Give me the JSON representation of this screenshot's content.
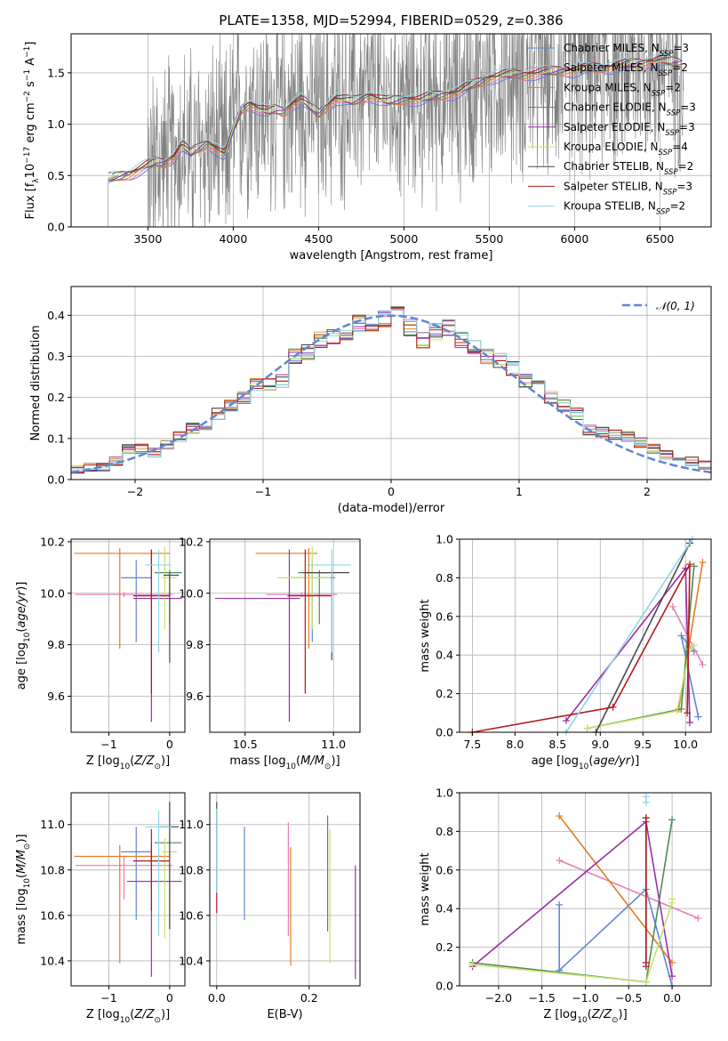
{
  "figure": {
    "title": "PLATE=1358, MJD=52994, FIBERID=0529, z=0.386"
  },
  "models": [
    {
      "name": "Chabrier MILES, N$_{SSP}$=3",
      "base": "Chabrier MILES, N",
      "sub": "SSP",
      "tail": "=3",
      "color": "#5f86d6"
    },
    {
      "name": "Salpeter MILES, N$_{SSP}$=2",
      "base": "Salpeter MILES, N",
      "sub": "SSP",
      "tail": "=2",
      "color": "#e67fb5"
    },
    {
      "name": "Kroupa MILES, N$_{SSP}$=2",
      "base": "Kroupa MILES, N",
      "sub": "SSP",
      "tail": "=2",
      "color": "#e57b22"
    },
    {
      "name": "Chabrier ELODIE, N$_{SSP}$=3",
      "base": "Chabrier ELODIE, N",
      "sub": "SSP",
      "tail": "=3",
      "color": "#4f8a57"
    },
    {
      "name": "Salpeter ELODIE, N$_{SSP}$=3",
      "base": "Salpeter ELODIE, N",
      "sub": "SSP",
      "tail": "=3",
      "color": "#9b2ea6"
    },
    {
      "name": "Kroupa ELODIE, N$_{SSP}$=4",
      "base": "Kroupa ELODIE, N",
      "sub": "SSP",
      "tail": "=4",
      "color": "#c6e26a"
    },
    {
      "name": "Chabrier STELIB, N$_{SSP}$=2",
      "base": "Chabrier STELIB, N",
      "sub": "SSP",
      "tail": "=2",
      "color": "#4a4a4a"
    },
    {
      "name": "Salpeter STELIB, N$_{SSP}$=3",
      "base": "Salpeter STELIB, N",
      "sub": "SSP",
      "tail": "=3",
      "color": "#b21a1a"
    },
    {
      "name": "Kroupa STELIB, N$_{SSP}$=2",
      "base": "Kroupa STELIB, N",
      "sub": "SSP",
      "tail": "=2",
      "color": "#8fd6e8"
    }
  ],
  "chart_data": [
    {
      "id": "spectrum",
      "type": "line",
      "xlabel": "wavelength [Angstrom, rest frame]",
      "ylabel": "Flux [f$_\\lambda$10$^{-17}$ erg cm$^{-2}$ s$^{-1}$ A$^{-1}$]",
      "xlim": [
        3050,
        6800
      ],
      "ylim": [
        0,
        1.88
      ],
      "xticks": [
        3500,
        4000,
        4500,
        5000,
        5500,
        6000,
        6500
      ],
      "yticks": [
        0.0,
        0.5,
        1.0,
        1.5
      ],
      "data_color": "#808080",
      "model_continuum": {
        "x": [
          3270,
          3300,
          3400,
          3450,
          3500,
          3550,
          3600,
          3650,
          3700,
          3750,
          3800,
          3850,
          3900,
          3950,
          4000,
          4050,
          4100,
          4150,
          4200,
          4250,
          4300,
          4350,
          4400,
          4500,
          4600,
          4700,
          4800,
          4900,
          5000,
          5100,
          5200,
          5300,
          5400,
          5500,
          5600,
          5700,
          5800,
          5900,
          6000,
          6100,
          6200,
          6300,
          6400,
          6500,
          6600
        ],
        "y": [
          0.47,
          0.48,
          0.52,
          0.56,
          0.6,
          0.63,
          0.62,
          0.68,
          0.8,
          0.72,
          0.77,
          0.82,
          0.76,
          0.7,
          0.95,
          1.15,
          1.2,
          1.15,
          1.12,
          1.14,
          1.12,
          1.2,
          1.24,
          1.1,
          1.25,
          1.22,
          1.28,
          1.22,
          1.24,
          1.24,
          1.28,
          1.3,
          1.38,
          1.45,
          1.48,
          1.48,
          1.5,
          1.52,
          1.52,
          1.55,
          1.55,
          1.58,
          1.6,
          1.62,
          1.6
        ]
      }
    },
    {
      "id": "residuals",
      "type": "bar",
      "xlabel": "(data-model)/error",
      "ylabel": "Normed distribution",
      "xlim": [
        -2.5,
        2.5
      ],
      "ylim": [
        0,
        0.47
      ],
      "xticks": [
        -2,
        -1,
        0,
        1,
        2
      ],
      "yticks": [
        0.0,
        0.1,
        0.2,
        0.3,
        0.4
      ],
      "legend": "$\\mathcal{N}(0,1)$",
      "legend_text": "𝒩(0, 1)",
      "legend_color": "#5f86d6",
      "bin_centers": [
        -2.45,
        -2.35,
        -2.25,
        -2.15,
        -2.05,
        -1.95,
        -1.85,
        -1.75,
        -1.65,
        -1.55,
        -1.45,
        -1.35,
        -1.25,
        -1.15,
        -1.05,
        -0.95,
        -0.85,
        -0.75,
        -0.65,
        -0.55,
        -0.45,
        -0.35,
        -0.25,
        -0.15,
        -0.05,
        0.05,
        0.15,
        0.25,
        0.35,
        0.45,
        0.55,
        0.65,
        0.75,
        0.85,
        0.95,
        1.05,
        1.15,
        1.25,
        1.35,
        1.45,
        1.55,
        1.65,
        1.75,
        1.85,
        1.95,
        2.05,
        2.15,
        2.25,
        2.35,
        2.45
      ],
      "hist_mean": [
        0.025,
        0.03,
        0.03,
        0.045,
        0.075,
        0.075,
        0.065,
        0.085,
        0.105,
        0.125,
        0.135,
        0.16,
        0.18,
        0.2,
        0.23,
        0.23,
        0.24,
        0.3,
        0.31,
        0.34,
        0.35,
        0.36,
        0.38,
        0.37,
        0.39,
        0.4,
        0.37,
        0.34,
        0.36,
        0.37,
        0.34,
        0.32,
        0.3,
        0.29,
        0.27,
        0.24,
        0.23,
        0.2,
        0.18,
        0.16,
        0.12,
        0.115,
        0.11,
        0.105,
        0.09,
        0.075,
        0.06,
        0.055,
        0.045,
        0.035
      ]
    },
    {
      "id": "age_vs_Z",
      "type": "scatter",
      "xlabel": "Z [log$_{10}$(Z/Z$_\\odot$)]",
      "ylabel": "age  [log$_{10}$(age/yr)]",
      "xlim": [
        -1.62,
        0.25
      ],
      "ylim": [
        9.46,
        10.21
      ],
      "xticks": [
        -1,
        0
      ],
      "yticks": [
        9.6,
        9.8,
        10.0,
        10.2
      ],
      "points": [
        {
          "x": -0.55,
          "y": 10.06,
          "xerr": [
            0.25,
            0.25
          ],
          "yerr": [
            0.25,
            0.07
          ]
        },
        {
          "x": -0.75,
          "y": 9.995,
          "xerr": [
            0.8,
            0.8
          ],
          "yerr": [
            0.01,
            0.01
          ]
        },
        {
          "x": -0.82,
          "y": 10.155,
          "xerr": [
            0.75,
            0.82
          ],
          "yerr": [
            0.37,
            0.02
          ]
        },
        {
          "x": 0.0,
          "y": 10.08,
          "xerr": [
            0.25,
            0.2
          ],
          "yerr": [
            0.2,
            0.01
          ]
        },
        {
          "x": -0.3,
          "y": 9.98,
          "xerr": [
            0.3,
            0.5
          ],
          "yerr": [
            0.48,
            0.19
          ]
        },
        {
          "x": -0.08,
          "y": 10.06,
          "xerr": [
            0.05,
            0.2
          ],
          "yerr": [
            0.2,
            0.12
          ]
        },
        {
          "x": 0.0,
          "y": 10.07,
          "xerr": [
            0.1,
            0.15
          ],
          "yerr": [
            0.34,
            0.01
          ]
        },
        {
          "x": -0.3,
          "y": 9.99,
          "xerr": [
            0.3,
            0.3
          ],
          "yerr": [
            0.38,
            0.18
          ]
        },
        {
          "x": -0.18,
          "y": 10.11,
          "xerr": [
            0.22,
            0.2
          ],
          "yerr": [
            0.34,
            0.06
          ]
        }
      ]
    },
    {
      "id": "age_vs_mass",
      "type": "scatter",
      "xlabel": "mass [log$_{10}$(M/M$_\\odot$)]",
      "ylabel": "",
      "xlim": [
        10.3,
        11.15
      ],
      "ylim": [
        9.46,
        10.21
      ],
      "xticks": [
        10.5,
        11.0
      ],
      "yticks": [
        9.6,
        9.8,
        10.0,
        10.2
      ],
      "points": [
        {
          "x": 10.88,
          "y": 10.06,
          "xerr": [
            0.13,
            0.13
          ],
          "yerr": [
            0.25,
            0.07
          ]
        },
        {
          "x": 10.82,
          "y": 9.995,
          "xerr": [
            0.2,
            0.2
          ],
          "yerr": [
            0.01,
            0.01
          ]
        },
        {
          "x": 10.86,
          "y": 10.155,
          "xerr": [
            0.3,
            0.05
          ],
          "yerr": [
            0.37,
            0.02
          ]
        },
        {
          "x": 10.92,
          "y": 10.08,
          "xerr": [
            0.12,
            0.05
          ],
          "yerr": [
            0.2,
            0.01
          ]
        },
        {
          "x": 10.75,
          "y": 9.98,
          "xerr": [
            0.42,
            0.06
          ],
          "yerr": [
            0.48,
            0.19
          ]
        },
        {
          "x": 10.88,
          "y": 10.06,
          "xerr": [
            0.2,
            0.1
          ],
          "yerr": [
            0.2,
            0.12
          ]
        },
        {
          "x": 10.99,
          "y": 10.08,
          "xerr": [
            0.16,
            0.1
          ],
          "yerr": [
            0.34,
            0.01
          ]
        },
        {
          "x": 10.84,
          "y": 9.99,
          "xerr": [
            0.1,
            0.15
          ],
          "yerr": [
            0.38,
            0.18
          ]
        },
        {
          "x": 10.99,
          "y": 10.11,
          "xerr": [
            0.14,
            0.11
          ],
          "yerr": [
            0.34,
            0.06
          ]
        }
      ]
    },
    {
      "id": "weight_vs_age",
      "type": "line",
      "xlabel": "age  [log$_{10}$(age/yr)]",
      "ylabel": "mass weight",
      "xlim": [
        7.35,
        10.3
      ],
      "ylim": [
        0,
        1
      ],
      "xticks": [
        7.5,
        8.0,
        8.5,
        9.0,
        9.5,
        10.0
      ],
      "yticks": [
        0.0,
        0.2,
        0.4,
        0.6,
        0.8,
        1.0
      ],
      "series": [
        {
          "x": [
            10.1,
            9.95,
            10.15
          ],
          "y": [
            0.42,
            0.5,
            0.08
          ]
        },
        {
          "x": [
            9.85,
            10.2
          ],
          "y": [
            0.65,
            0.35
          ]
        },
        {
          "x": [
            9.92,
            10.2
          ],
          "y": [
            0.12,
            0.88
          ]
        },
        {
          "x": [
            8.85,
            9.95,
            10.1
          ],
          "y": [
            0.02,
            0.12,
            0.86
          ]
        },
        {
          "x": [
            8.6,
            10.0,
            10.05
          ],
          "y": [
            0.06,
            0.85,
            0.05
          ]
        },
        {
          "x": [
            8.85,
            9.9,
            10.05,
            10.1
          ],
          "y": [
            0.02,
            0.11,
            0.43,
            0.45
          ]
        },
        {
          "x": [
            8.95,
            10.05
          ],
          "y": [
            0.0,
            0.98
          ]
        },
        {
          "x": [
            7.5,
            9.15,
            10.05,
            10.02
          ],
          "y": [
            0.0,
            0.13,
            0.87,
            0.1
          ]
        },
        {
          "x": [
            8.6,
            10.08
          ],
          "y": [
            0.0,
            1.0
          ]
        }
      ]
    },
    {
      "id": "mass_vs_Z",
      "type": "scatter",
      "xlabel": "Z [log$_{10}$(Z/Z$_\\odot$)]",
      "ylabel": "mass [log$_{10}$(M/M$_\\odot$)]",
      "xlim": [
        -1.62,
        0.25
      ],
      "ylim": [
        10.29,
        11.14
      ],
      "xticks": [
        -1,
        0
      ],
      "yticks": [
        10.4,
        10.6,
        10.8,
        11.0
      ],
      "points": [
        {
          "x": -0.55,
          "y": 10.88,
          "xerr": [
            0.25,
            0.25
          ],
          "yerr": [
            0.3,
            0.11
          ]
        },
        {
          "x": -0.75,
          "y": 10.82,
          "xerr": [
            0.8,
            0.8
          ],
          "yerr": [
            0.15,
            0.04
          ]
        },
        {
          "x": -0.82,
          "y": 10.86,
          "xerr": [
            0.75,
            0.82
          ],
          "yerr": [
            0.47,
            0.05
          ]
        },
        {
          "x": 0.0,
          "y": 10.92,
          "xerr": [
            0.25,
            0.2
          ],
          "yerr": [
            0.38,
            0.18
          ]
        },
        {
          "x": -0.3,
          "y": 10.75,
          "xerr": [
            0.4,
            0.5
          ],
          "yerr": [
            0.42,
            0.17
          ]
        },
        {
          "x": -0.08,
          "y": 10.88,
          "xerr": [
            0.05,
            0.2
          ],
          "yerr": [
            0.38,
            0.06
          ]
        },
        {
          "x": 0.0,
          "y": 10.99,
          "xerr": [
            0.15,
            0.15
          ],
          "yerr": [
            0.45,
            0.11
          ]
        },
        {
          "x": -0.3,
          "y": 10.84,
          "xerr": [
            0.3,
            0.3
          ],
          "yerr": [
            0.22,
            0.14
          ]
        },
        {
          "x": -0.18,
          "y": 10.99,
          "xerr": [
            0.22,
            0.2
          ],
          "yerr": [
            0.48,
            0.07
          ]
        }
      ]
    },
    {
      "id": "mass_vs_ebv",
      "type": "scatter",
      "xlabel": "E(B-V)",
      "ylabel": "",
      "xlim": [
        -0.015,
        0.31
      ],
      "ylim": [
        10.29,
        11.14
      ],
      "xticks": [
        0.0,
        0.2
      ],
      "yticks": [
        10.4,
        10.6,
        10.8,
        11.0
      ],
      "points": [
        {
          "x": 0.06,
          "y": 10.8,
          "xerr": [
            0,
            0
          ],
          "yerr": [
            0.22,
            0.19
          ]
        },
        {
          "x": 0.155,
          "y": 10.75,
          "xerr": [
            0,
            0
          ],
          "yerr": [
            0.24,
            0.26
          ]
        },
        {
          "x": 0.16,
          "y": 10.7,
          "xerr": [
            0,
            0
          ],
          "yerr": [
            0.32,
            0.2
          ]
        },
        {
          "x": 0.24,
          "y": 10.8,
          "xerr": [
            0,
            0
          ],
          "yerr": [
            0.27,
            0.24
          ]
        },
        {
          "x": 0.3,
          "y": 10.6,
          "xerr": [
            0,
            0
          ],
          "yerr": [
            0.28,
            0.22
          ]
        },
        {
          "x": 0.245,
          "y": 10.75,
          "xerr": [
            0,
            0
          ],
          "yerr": [
            0.36,
            0.23
          ]
        },
        {
          "x": 0.0,
          "y": 10.9,
          "xerr": [
            0,
            0
          ],
          "yerr": [
            0.2,
            0.2
          ]
        },
        {
          "x": 0.0,
          "y": 10.65,
          "xerr": [
            0,
            0
          ],
          "yerr": [
            0.04,
            0.05
          ]
        },
        {
          "x": 0.0,
          "y": 10.95,
          "xerr": [
            0,
            0
          ],
          "yerr": [
            0.25,
            0.12
          ]
        }
      ]
    },
    {
      "id": "weight_vs_Z",
      "type": "line",
      "xlabel": "Z [log$_{10}$(Z/Z$_\\odot$)]",
      "ylabel": "mass weight",
      "xlim": [
        -2.45,
        0.45
      ],
      "ylim": [
        0,
        1
      ],
      "xticks": [
        -2.0,
        -1.5,
        -1.0,
        -0.5,
        0.0
      ],
      "yticks": [
        0.0,
        0.2,
        0.4,
        0.6,
        0.8,
        1.0
      ],
      "series": [
        {
          "x": [
            -1.3,
            -1.3,
            -0.3,
            0.0
          ],
          "y": [
            0.42,
            0.08,
            0.5,
            0.0
          ]
        },
        {
          "x": [
            -1.3,
            0.3
          ],
          "y": [
            0.65,
            0.35
          ]
        },
        {
          "x": [
            -1.3,
            0.0
          ],
          "y": [
            0.88,
            0.12
          ]
        },
        {
          "x": [
            -2.3,
            -0.3,
            0.0
          ],
          "y": [
            0.12,
            0.02,
            0.86
          ]
        },
        {
          "x": [
            -2.3,
            -0.3,
            0.0
          ],
          "y": [
            0.1,
            0.85,
            0.05
          ]
        },
        {
          "x": [
            -2.3,
            -0.3,
            0.0,
            0.0
          ],
          "y": [
            0.11,
            0.02,
            0.43,
            0.45
          ]
        },
        {
          "x": [
            -0.3,
            -0.3
          ],
          "y": [
            0.12,
            0.87
          ]
        },
        {
          "x": [
            -0.3,
            -0.3,
            -0.3
          ],
          "y": [
            0.12,
            0.87,
            0.1
          ]
        },
        {
          "x": [
            -0.3,
            -0.3
          ],
          "y": [
            0.98,
            0.95
          ]
        }
      ]
    }
  ]
}
